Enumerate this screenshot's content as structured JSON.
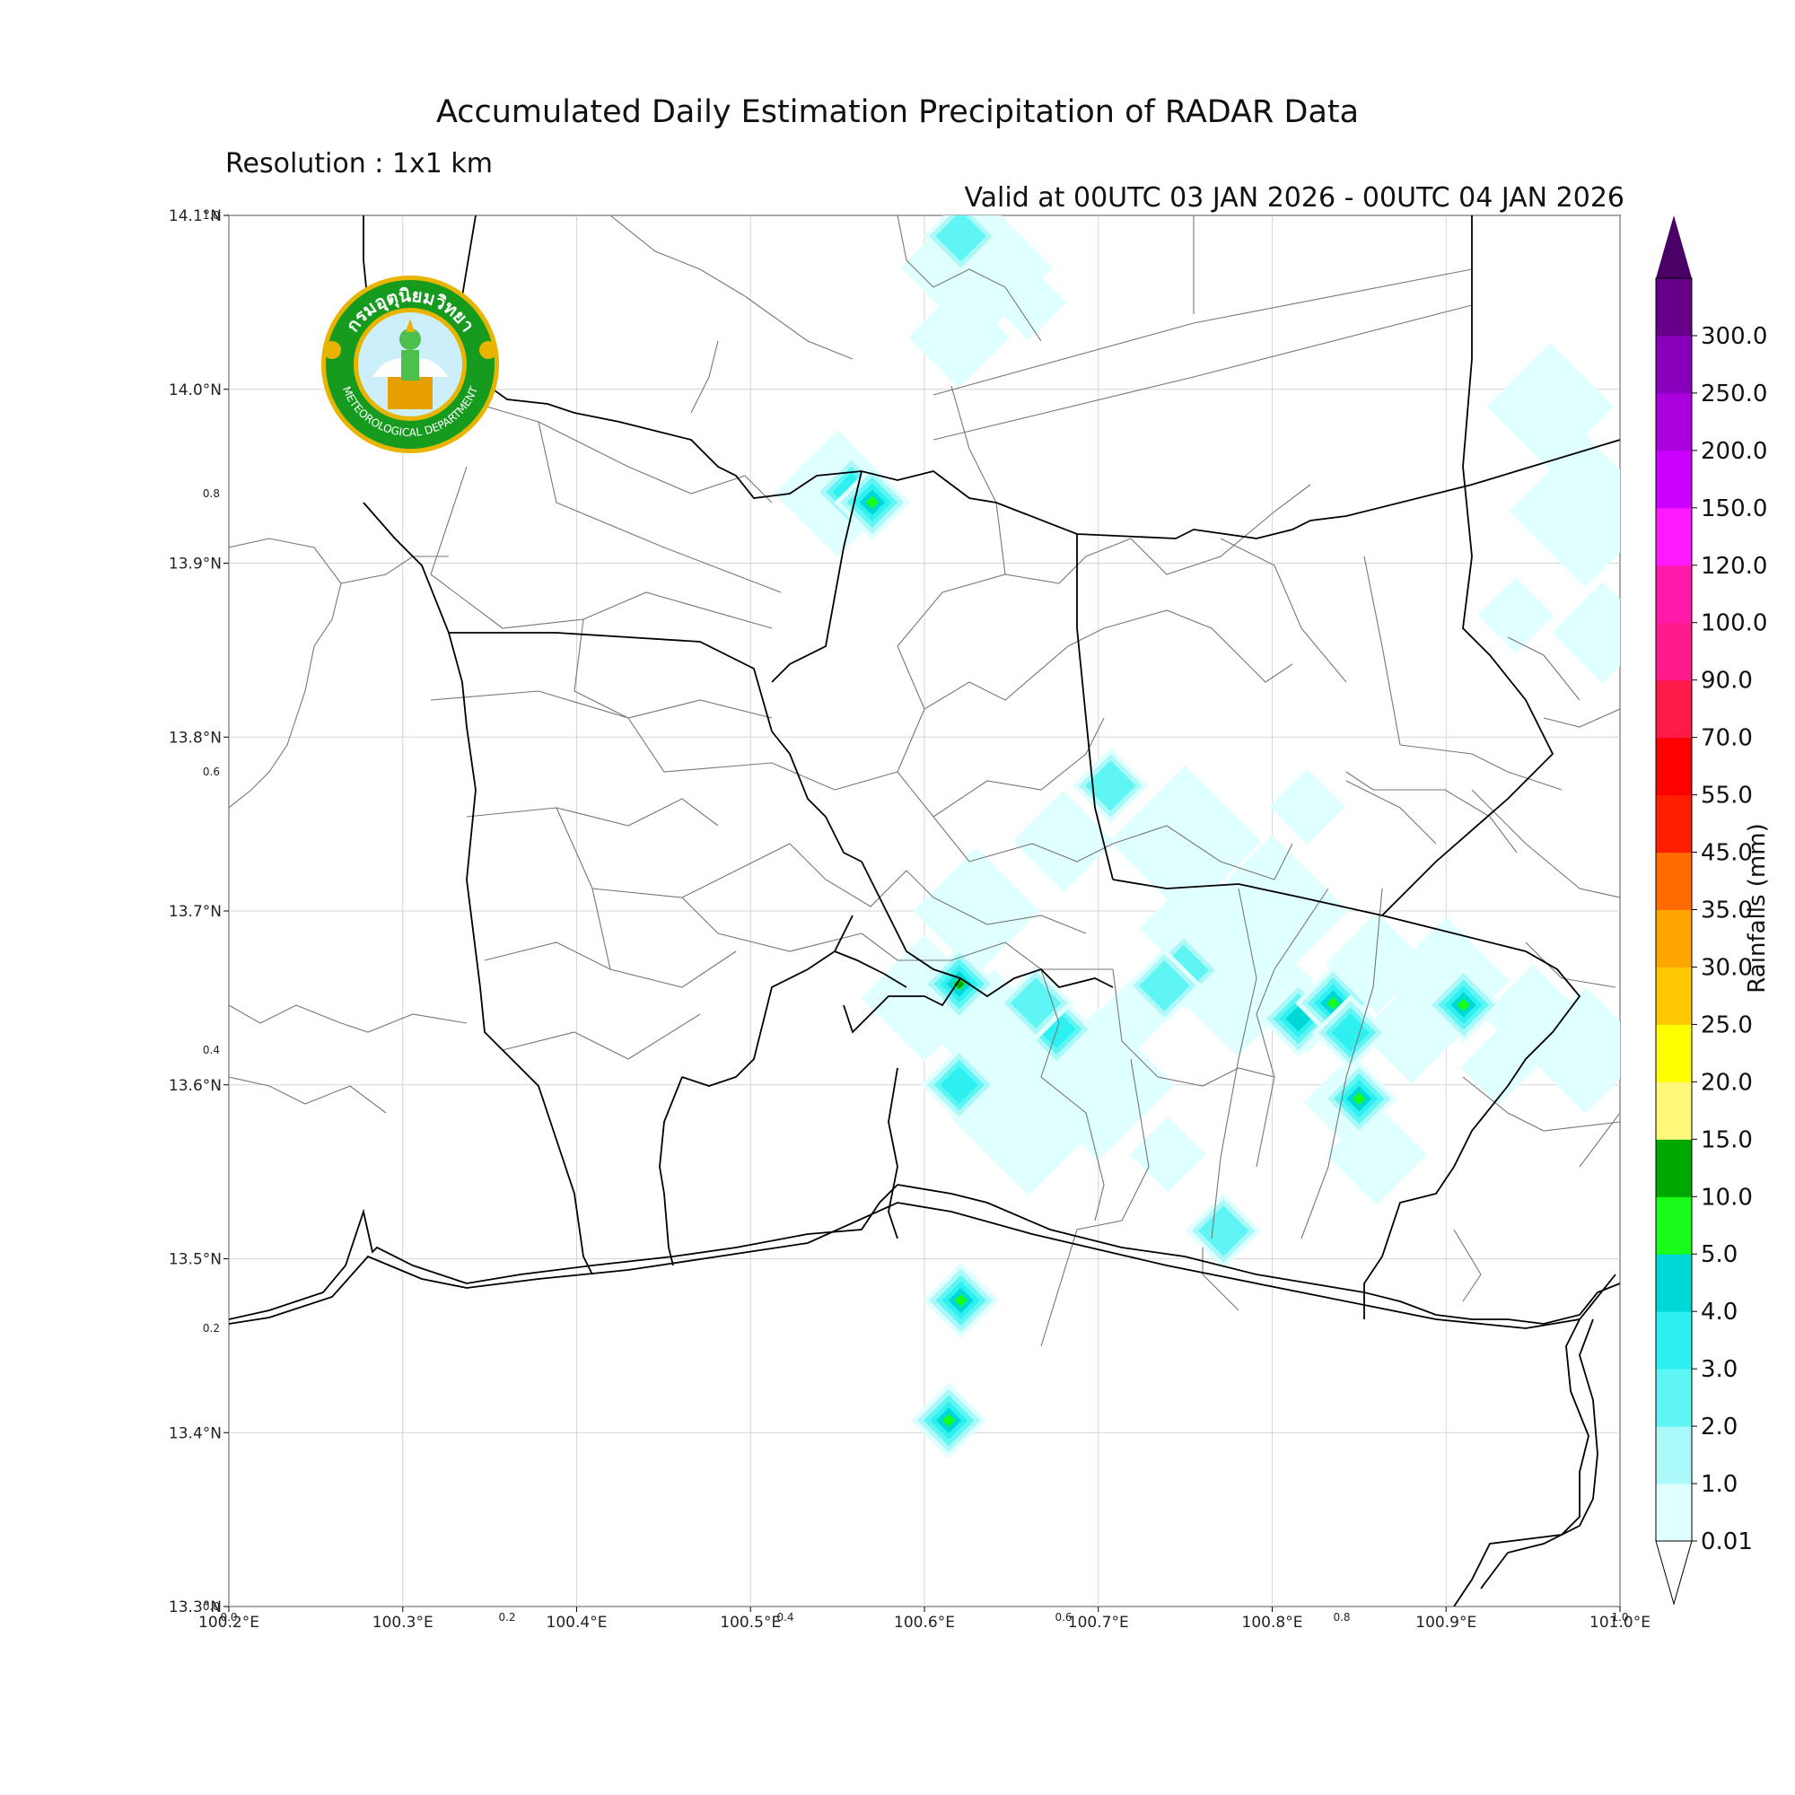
{
  "title": "Accumulated Daily Estimation Precipitation of RADAR Data",
  "resolution": "Resolution : 1x1 km",
  "valid": "Valid at 00UTC 03 JAN 2026 - 00UTC 04 JAN 2026",
  "logo": {
    "thai_text": "กรมอุตุนิยมวิทยา",
    "english_text": "METEOROLOGICAL DEPARTMENT",
    "ring_color": "#169b1f",
    "accent_color": "#e8b400"
  },
  "axes": {
    "lon_labels": [
      "100.2°E",
      "100.3°E",
      "100.4°E",
      "100.5°E",
      "100.6°E",
      "100.7°E",
      "100.8°E",
      "100.9°E",
      "101.0°E"
    ],
    "lat_labels": [
      "14.1°N",
      "14.0°N",
      "13.9°N",
      "13.8°N",
      "13.7°N",
      "13.6°N",
      "13.5°N",
      "13.4°N",
      "13.3°N"
    ],
    "secondary_x": [
      "0.0",
      "0.2",
      "0.4",
      "0.6",
      "0.8",
      "1.0"
    ],
    "secondary_y": [
      "1.0",
      "0.8",
      "0.6",
      "0.4",
      "0.2",
      "0.0"
    ]
  },
  "colorbar": {
    "title": "Rainfalls (mm)",
    "levels": [
      "0.01",
      "1.0",
      "2.0",
      "3.0",
      "4.0",
      "5.0",
      "10.0",
      "15.0",
      "20.0",
      "25.0",
      "30.0",
      "35.0",
      "45.0",
      "55.0",
      "70.0",
      "90.0",
      "100.0",
      "120.0",
      "150.0",
      "200.0",
      "250.0",
      "300.0"
    ],
    "colors": [
      "#e0ffff",
      "#aaf8f8",
      "#5ff5f5",
      "#2ef0f0",
      "#00d8d8",
      "#19fb19",
      "#00a800",
      "#fff87a",
      "#ffff00",
      "#ffc800",
      "#ffa500",
      "#ff6b00",
      "#ff1e00",
      "#ff0000",
      "#ff1a4a",
      "#ff1a8c",
      "#ff1aaa",
      "#ff1aff",
      "#cc00ff",
      "#aa00dd",
      "#8800bb",
      "#660088"
    ],
    "over_color": "#4a0066"
  },
  "precip_patches": [
    {
      "lon": 100.62,
      "lat": 13.658,
      "mm": 10.0
    },
    {
      "lon": 100.62,
      "lat": 13.6,
      "mm": 3.0
    },
    {
      "lon": 100.815,
      "lat": 13.638,
      "mm": 4.0
    },
    {
      "lon": 100.835,
      "lat": 13.647,
      "mm": 5.0
    },
    {
      "lon": 100.845,
      "lat": 13.63,
      "mm": 3.0
    },
    {
      "lon": 100.91,
      "lat": 13.646,
      "mm": 5.0
    },
    {
      "lon": 100.85,
      "lat": 13.592,
      "mm": 5.0
    },
    {
      "lon": 100.676,
      "lat": 13.632,
      "mm": 3.0
    },
    {
      "lon": 100.664,
      "lat": 13.647,
      "mm": 2.0
    },
    {
      "lon": 100.707,
      "lat": 13.772,
      "mm": 2.0
    },
    {
      "lon": 100.558,
      "lat": 13.941,
      "mm": 3.0
    },
    {
      "lon": 100.57,
      "lat": 13.935,
      "mm": 5.0
    },
    {
      "lon": 100.621,
      "lat": 14.088,
      "mm": 2.0
    },
    {
      "lon": 100.772,
      "lat": 13.516,
      "mm": 2.0
    },
    {
      "lon": 100.621,
      "lat": 13.476,
      "mm": 5.0
    },
    {
      "lon": 100.614,
      "lat": 13.407,
      "mm": 5.0
    },
    {
      "lon": 100.749,
      "lat": 13.666,
      "mm": 2.0
    },
    {
      "lon": 100.738,
      "lat": 13.657,
      "mm": 2.0
    }
  ]
}
